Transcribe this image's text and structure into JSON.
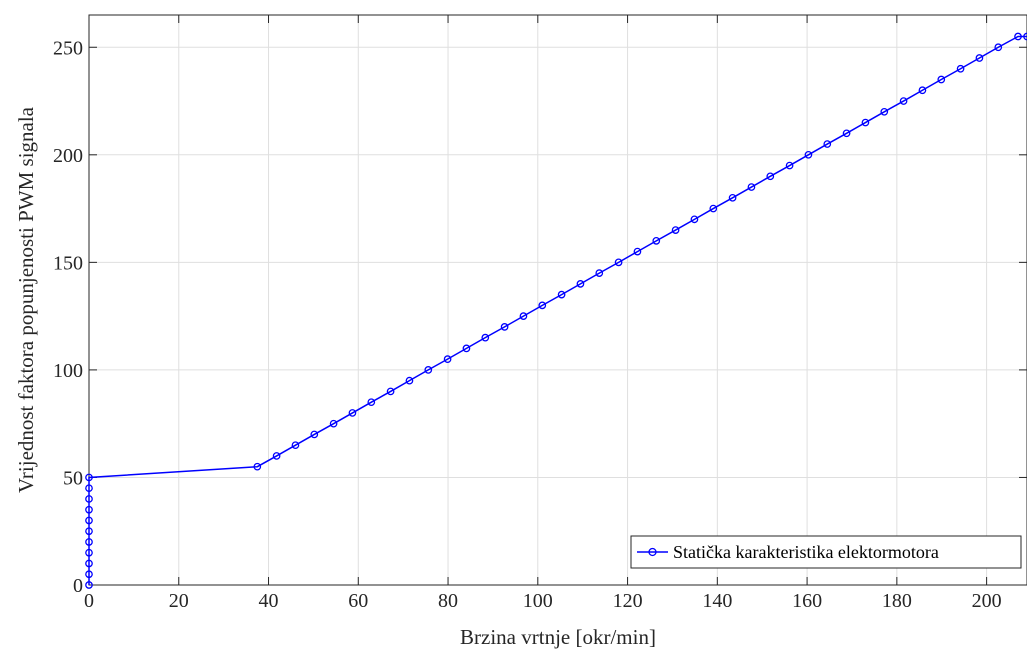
{
  "chart_data": {
    "type": "line",
    "title": "",
    "xlabel": "Brzina vrtnje [okr/min]",
    "ylabel": "Vrijednost faktora popunjenosti PWM signala",
    "xlim": [
      0,
      209
    ],
    "ylim": [
      0,
      265
    ],
    "xticks": [
      0,
      20,
      40,
      60,
      80,
      100,
      120,
      140,
      160,
      180,
      200
    ],
    "yticks": [
      0,
      50,
      100,
      150,
      200,
      250
    ],
    "grid": true,
    "legend_position": "bottom-right",
    "series": [
      {
        "name": "Statička karakteristika elektormotora",
        "color": "#0000ff",
        "marker": "circle",
        "x": [
          0,
          0,
          0,
          0,
          0,
          0,
          0,
          0,
          0,
          0,
          0,
          37.5,
          41.8,
          46.0,
          50.2,
          54.5,
          58.7,
          62.9,
          67.2,
          71.4,
          75.6,
          79.9,
          84.1,
          88.3,
          92.6,
          96.8,
          101.0,
          105.3,
          109.5,
          113.7,
          118.0,
          122.2,
          126.4,
          130.7,
          134.9,
          139.1,
          143.4,
          147.6,
          151.8,
          156.1,
          160.3,
          164.5,
          168.8,
          173.0,
          177.2,
          181.5,
          185.7,
          189.9,
          194.2,
          198.4,
          202.6,
          207.0,
          209
        ],
        "y": [
          0,
          5,
          10,
          15,
          20,
          25,
          30,
          35,
          40,
          45,
          50,
          55,
          60,
          65,
          70,
          75,
          80,
          85,
          90,
          95,
          100,
          105,
          110,
          115,
          120,
          125,
          130,
          135,
          140,
          145,
          150,
          155,
          160,
          165,
          170,
          175,
          180,
          185,
          190,
          195,
          200,
          205,
          210,
          215,
          220,
          225,
          230,
          235,
          240,
          245,
          250,
          255,
          255
        ]
      }
    ]
  }
}
